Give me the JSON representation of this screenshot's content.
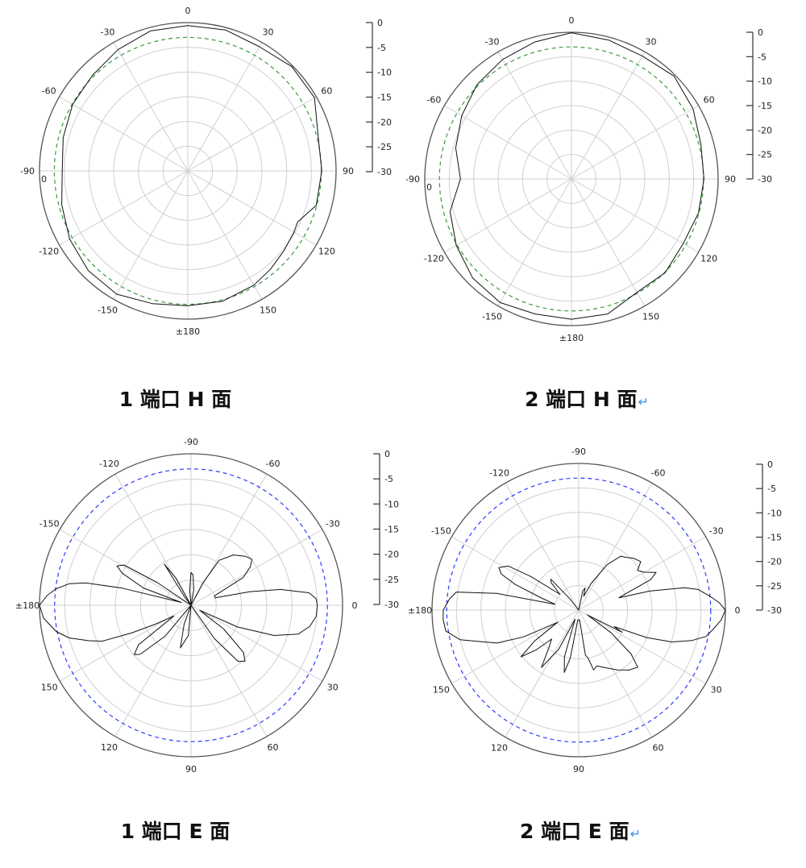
{
  "chart_data": [
    {
      "type": "polar-line",
      "title": "1 端口 H 面",
      "paragraph_mark": "",
      "angle_zero": "top",
      "direction": "clockwise",
      "angle_ticks": [
        0,
        30,
        60,
        90,
        120,
        150,
        180,
        210,
        240,
        270,
        300,
        330
      ],
      "angle_labels": [
        "0",
        "30",
        "60",
        "90",
        "120",
        "150",
        "±180",
        "-150",
        "-120",
        "-90",
        "-60",
        "-30"
      ],
      "extra_label": "0",
      "rlim": [
        -30,
        0
      ],
      "radial_ticks": [
        "0",
        "-5",
        "-10",
        "-15",
        "-20",
        "-25",
        "-30"
      ],
      "reference_db": -3,
      "reference_color": "#3c9a3c",
      "grid": true,
      "series": [
        {
          "values": [
            [
              0,
              -0.6
            ],
            [
              15,
              -0.5
            ],
            [
              30,
              -1.0
            ],
            [
              45,
              -0.2
            ],
            [
              60,
              -0.4
            ],
            [
              75,
              -2.7
            ],
            [
              90,
              -2.9
            ],
            [
              105,
              -3.1
            ],
            [
              115,
              -5.5
            ],
            [
              120,
              -5.2
            ],
            [
              130,
              -4.7
            ],
            [
              140,
              -4.0
            ],
            [
              150,
              -3.3
            ],
            [
              165,
              -2.7
            ],
            [
              180,
              -2.7
            ],
            [
              195,
              -2.2
            ],
            [
              210,
              -1.2
            ],
            [
              225,
              -1.5
            ],
            [
              240,
              -2.4
            ],
            [
              255,
              -3.6
            ],
            [
              270,
              -4.6
            ],
            [
              285,
              -3.9
            ],
            [
              300,
              -3.1
            ],
            [
              315,
              -2.7
            ],
            [
              330,
              -1.7
            ],
            [
              345,
              -0.7
            ]
          ]
        }
      ]
    },
    {
      "type": "polar-line",
      "title": "2 端口 H 面",
      "paragraph_mark": "↵",
      "angle_zero": "top",
      "direction": "clockwise",
      "angle_ticks": [
        0,
        30,
        60,
        90,
        120,
        150,
        180,
        210,
        240,
        270,
        300,
        330
      ],
      "angle_labels": [
        "0",
        "30",
        "60",
        "90",
        "120",
        "150",
        "±180",
        "-150",
        "-120",
        "-90",
        "-60",
        "-30"
      ],
      "extra_label": "0",
      "rlim": [
        -30,
        0
      ],
      "radial_ticks": [
        "0",
        "-5",
        "-10",
        "-15",
        "-20",
        "-25",
        "-30"
      ],
      "reference_db": -3,
      "reference_color": "#3c9a3c",
      "grid": true,
      "series": [
        {
          "values": [
            [
              0,
              -0.1
            ],
            [
              15,
              -0.6
            ],
            [
              30,
              -1.0
            ],
            [
              45,
              -0.3
            ],
            [
              60,
              -1.3
            ],
            [
              75,
              -2.6
            ],
            [
              90,
              -2.9
            ],
            [
              105,
              -3.1
            ],
            [
              120,
              -3.6
            ],
            [
              135,
              -2.9
            ],
            [
              150,
              -3.2
            ],
            [
              165,
              -1.4
            ],
            [
              180,
              -1.3
            ],
            [
              195,
              -1.4
            ],
            [
              210,
              -0.8
            ],
            [
              225,
              -1.4
            ],
            [
              240,
              -2.8
            ],
            [
              255,
              -4.3
            ],
            [
              270,
              -7.3
            ],
            [
              285,
              -5.5
            ],
            [
              300,
              -4.1
            ],
            [
              315,
              -2.7
            ],
            [
              330,
              -1.8
            ],
            [
              345,
              -1.0
            ]
          ]
        }
      ]
    },
    {
      "type": "polar-line",
      "title": "1 端口 E 面",
      "paragraph_mark": "",
      "angle_zero": "right",
      "direction": "clockwise",
      "angle_ticks": [
        0,
        30,
        60,
        90,
        120,
        150,
        180,
        210,
        240,
        270,
        300,
        330
      ],
      "angle_labels": [
        "0",
        "30",
        "60",
        "90",
        "120",
        "150",
        "±180",
        "-150",
        "-120",
        "-90",
        "-60",
        "-30"
      ],
      "rlim": [
        -30,
        0
      ],
      "radial_ticks": [
        "0",
        "-5",
        "-10",
        "-15",
        "-20",
        "-25",
        "-30"
      ],
      "reference_db": -3,
      "reference_color": "#2a3cff",
      "grid": true,
      "series": [
        {
          "values": [
            [
              -180,
              0
            ],
            [
              -176,
              -1.5
            ],
            [
              -173,
              -3.1
            ],
            [
              -170,
              -5.5
            ],
            [
              -168,
              -8.7
            ],
            [
              -166,
              -16
            ],
            [
              -164,
              -28
            ],
            [
              -160,
              -20
            ],
            [
              -155,
              -15
            ],
            [
              -152,
              -13.4
            ],
            [
              -149,
              -14.5
            ],
            [
              -146,
              -22
            ],
            [
              -142,
              -30
            ],
            [
              -128,
              -28
            ],
            [
              -123,
              -20.3
            ],
            [
              -119,
              -24
            ],
            [
              -112,
              -30
            ],
            [
              -95,
              -27
            ],
            [
              -90,
              -23.5
            ],
            [
              -86,
              -24
            ],
            [
              -80,
              -27
            ],
            [
              -70,
              -30
            ],
            [
              -62,
              -25
            ],
            [
              -58,
              -19.5
            ],
            [
              -50,
              -17
            ],
            [
              -42,
              -15.5
            ],
            [
              -37,
              -14.9
            ],
            [
              -33,
              -16
            ],
            [
              -28,
              -18.3
            ],
            [
              -22,
              -25
            ],
            [
              -17,
              -25
            ],
            [
              -13,
              -18
            ],
            [
              -10,
              -12
            ],
            [
              -6,
              -6.5
            ],
            [
              -3,
              -5.2
            ],
            [
              0,
              -5
            ],
            [
              5,
              -5.1
            ],
            [
              10,
              -6.1
            ],
            [
              15,
              -8
            ],
            [
              20,
              -12.5
            ],
            [
              25,
              -19.8
            ],
            [
              30,
              -28
            ],
            [
              36,
              -22
            ],
            [
              42,
              -16
            ],
            [
              46,
              -14.6
            ],
            [
              50,
              -15.5
            ],
            [
              55,
              -22
            ],
            [
              60,
              -30
            ],
            [
              75,
              -30
            ],
            [
              95,
              -24
            ],
            [
              104,
              -21.3
            ],
            [
              110,
              -26
            ],
            [
              118,
              -30
            ],
            [
              130,
              -22
            ],
            [
              136,
              -16
            ],
            [
              139,
              -15.1
            ],
            [
              143,
              -17
            ],
            [
              148,
              -26
            ],
            [
              152,
              -22
            ],
            [
              155,
              -17
            ],
            [
              158,
              -11
            ],
            [
              161,
              -8.5
            ],
            [
              165,
              -5
            ],
            [
              169,
              -2.8
            ],
            [
              175,
              -0.7
            ],
            [
              180,
              0
            ]
          ]
        }
      ]
    },
    {
      "type": "polar-line",
      "title": "2 端口 E 面",
      "paragraph_mark": "↵",
      "angle_zero": "right",
      "direction": "clockwise",
      "angle_ticks": [
        0,
        30,
        60,
        90,
        120,
        150,
        180,
        210,
        240,
        270,
        300,
        330
      ],
      "angle_labels": [
        "0",
        "30",
        "60",
        "90",
        "120",
        "150",
        "±180",
        "-150",
        "-120",
        "-90",
        "-60",
        "-30"
      ],
      "rlim": [
        -30,
        0
      ],
      "radial_ticks": [
        "0",
        "-5",
        "-10",
        "-15",
        "-20",
        "-25",
        "-30"
      ],
      "reference_db": -3,
      "reference_color": "#2a3cff",
      "grid": true,
      "series": [
        {
          "values": [
            [
              -180,
              -2.3
            ],
            [
              -175,
              -3.5
            ],
            [
              -171.6,
              -4.7
            ],
            [
              -168.5,
              -12.9
            ],
            [
              -166,
              -25
            ],
            [
              -162,
              -22
            ],
            [
              -158,
              -16
            ],
            [
              -155,
              -12.5
            ],
            [
              -152,
              -11.5
            ],
            [
              -148,
              -13
            ],
            [
              -145,
              -18
            ],
            [
              -140,
              -25
            ],
            [
              -135,
              -22
            ],
            [
              -132,
              -21.5
            ],
            [
              -128,
              -27
            ],
            [
              -115,
              -30
            ],
            [
              -90,
              -30
            ],
            [
              -78,
              -26
            ],
            [
              -74,
              -25.3
            ],
            [
              -70,
              -27
            ],
            [
              -65,
              -24
            ],
            [
              -58,
              -19
            ],
            [
              -52,
              -16
            ],
            [
              -48,
              -15.5
            ],
            [
              -43,
              -14.5
            ],
            [
              -38,
              -13.9
            ],
            [
              -34,
              -15.5
            ],
            [
              -30,
              -14.5
            ],
            [
              -26,
              -12.4
            ],
            [
              -23,
              -14
            ],
            [
              -19,
              -20
            ],
            [
              -17,
              -21.4
            ],
            [
              -15,
              -15
            ],
            [
              -12,
              -8
            ],
            [
              -9.8,
              -5.2
            ],
            [
              -6,
              -3
            ],
            [
              -3,
              -1.2
            ],
            [
              0,
              0
            ],
            [
              4,
              -0.8
            ],
            [
              8,
              -2.2
            ],
            [
              11.7,
              -3.4
            ],
            [
              15,
              -6
            ],
            [
              18.9,
              -9.9
            ],
            [
              22,
              -15
            ],
            [
              25,
              -22
            ],
            [
              27,
              -20.1
            ],
            [
              29,
              -28
            ],
            [
              35,
              -22
            ],
            [
              40,
              -16
            ],
            [
              44,
              -13.2
            ],
            [
              50,
              -14
            ],
            [
              57,
              -15.4
            ],
            [
              65,
              -17
            ],
            [
              72,
              -18
            ],
            [
              76,
              -17.4
            ],
            [
              79,
              -20
            ],
            [
              81.5,
              -20.7
            ],
            [
              85,
              -28
            ],
            [
              95,
              -28
            ],
            [
              100,
              -20
            ],
            [
              103,
              -16.9
            ],
            [
              107,
              -20
            ],
            [
              112,
              -28
            ],
            [
              117,
              -21
            ],
            [
              123,
              -16
            ],
            [
              128,
              -20
            ],
            [
              133,
              -21.9
            ],
            [
              137,
              -18
            ],
            [
              141,
              -14.8
            ],
            [
              145,
              -19
            ],
            [
              150,
              -25
            ],
            [
              154,
              -17.5
            ],
            [
              158,
              -12
            ],
            [
              161.6,
              -9.4
            ],
            [
              166,
              -5
            ],
            [
              171,
              -2.5
            ],
            [
              176,
              -2.2
            ],
            [
              180,
              -2.3
            ]
          ]
        }
      ]
    }
  ]
}
